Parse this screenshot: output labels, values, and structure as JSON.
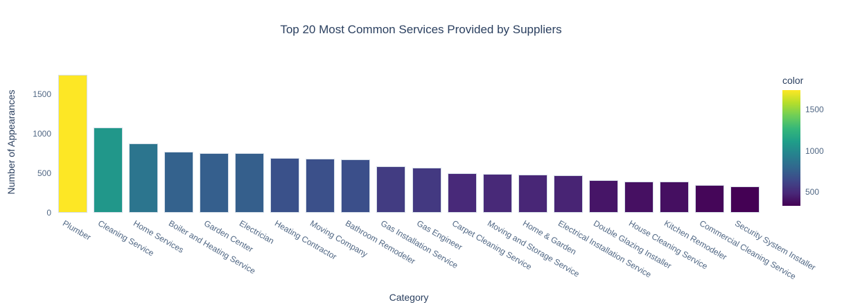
{
  "title": "Top 20 Most Common Services Provided by Suppliers",
  "chart_data": {
    "type": "bar",
    "title": "Top 20 Most Common Services Provided by Suppliers",
    "xlabel": "Category",
    "ylabel": "Number of Appearances",
    "categories": [
      "Plumber",
      "Cleaning Service",
      "Home Services",
      "Boiler and Heating Service",
      "Garden Center",
      "Electrician",
      "Heating Contractor",
      "Moving Company",
      "Bathroom Remodeler",
      "Gas Installation Service",
      "Gas Engineer",
      "Carpet Cleaning Service",
      "Moving and Storage Service",
      "Home & Garden",
      "Electrical Installation Service",
      "Double Glazing Installer",
      "House Cleaning Service",
      "Kitchen Remodeler",
      "Commercial Cleaning Service",
      "Security System Installer"
    ],
    "values": [
      1740,
      1075,
      880,
      770,
      757,
      755,
      688,
      683,
      678,
      583,
      570,
      496,
      492,
      482,
      472,
      414,
      394,
      390,
      353,
      333
    ],
    "ylim": [
      0,
      1900
    ],
    "yticks": [
      0,
      500,
      1000,
      1500
    ],
    "xtick_angle": 30,
    "grid": false,
    "legend_position": "none",
    "colorbar": {
      "title": "color",
      "ticks": [
        500,
        1000,
        1500
      ],
      "min": 333,
      "max": 1740
    },
    "colorscale_name": "viridis",
    "colorscale": [
      [
        0.0,
        "#440154"
      ],
      [
        0.1111,
        "#482878"
      ],
      [
        0.2222,
        "#3e4989"
      ],
      [
        0.3333,
        "#31688e"
      ],
      [
        0.4444,
        "#26828e"
      ],
      [
        0.5556,
        "#1f9e89"
      ],
      [
        0.6667,
        "#35b779"
      ],
      [
        0.7778,
        "#6ece58"
      ],
      [
        0.8889,
        "#b5de2b"
      ],
      [
        1.0,
        "#fde725"
      ]
    ]
  },
  "colors": {
    "background": "#ffffff",
    "title_text": "#2a3f5f",
    "axis_title_text": "#2a3f5f",
    "tick_text": "#506784",
    "bar_border": "#d5dee8"
  }
}
